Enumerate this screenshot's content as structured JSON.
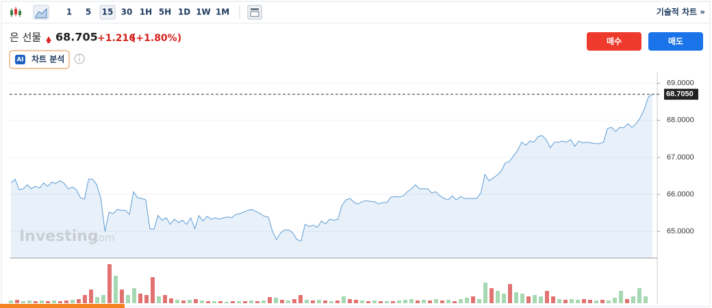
{
  "toolbar": {
    "intervals": [
      "1",
      "5",
      "15",
      "30",
      "1H",
      "5H",
      "1D",
      "1W",
      "1M"
    ],
    "selected": 2,
    "technical_link": "기술적 차트 »"
  },
  "header": {
    "instrument": "은 선물",
    "price": "68.705",
    "change": "+1.216",
    "change_percent": "(+1.80%)",
    "ai_badge": "AI",
    "ai_button": "차트 분석",
    "buy": "매수",
    "sell": "매도"
  },
  "watermark": {
    "brand": "Investing",
    "suffix": ".com"
  },
  "chart_data": {
    "type": "area",
    "ylim": [
      64.28,
      69.31
    ],
    "yticks": [
      {
        "value": 65,
        "label": "65.0000"
      },
      {
        "value": 66,
        "label": "66.0000"
      },
      {
        "value": 67,
        "label": "67.0000"
      },
      {
        "value": 68,
        "label": "68.0000"
      },
      {
        "value": 69,
        "label": "69.0000"
      }
    ],
    "grid": true,
    "last": {
      "value": 68.705,
      "label": "68.7050"
    },
    "series": [
      {
        "color": "#5b9bd5",
        "values": [
          66.31,
          66.41,
          66.13,
          66.15,
          66.26,
          66.15,
          66.22,
          66.17,
          66.31,
          66.22,
          66.33,
          66.3,
          66.37,
          66.3,
          66.15,
          66.2,
          66.13,
          65.91,
          65.87,
          66.41,
          66.41,
          66.26,
          65.89,
          65.0,
          65.52,
          65.48,
          65.59,
          65.57,
          65.57,
          65.46,
          66.07,
          65.91,
          65.89,
          65.85,
          65.07,
          65.06,
          65.43,
          65.3,
          65.37,
          65.19,
          65.33,
          65.24,
          65.3,
          65.19,
          65.37,
          65.07,
          65.43,
          65.28,
          65.41,
          65.33,
          65.37,
          65.33,
          65.37,
          65.39,
          65.37,
          65.46,
          65.48,
          65.52,
          65.57,
          65.59,
          65.54,
          65.48,
          65.41,
          65.39,
          65.0,
          64.78,
          64.96,
          65.04,
          65.04,
          64.96,
          64.78,
          64.74,
          65.19,
          65.13,
          65.17,
          65.11,
          65.28,
          65.2,
          65.33,
          65.3,
          65.33,
          65.7,
          65.85,
          65.89,
          65.78,
          65.74,
          65.81,
          65.83,
          65.81,
          65.8,
          65.74,
          65.78,
          65.78,
          65.93,
          65.94,
          65.93,
          65.96,
          66.07,
          66.15,
          66.26,
          66.15,
          66.15,
          66.15,
          66.04,
          66.07,
          65.96,
          65.89,
          65.85,
          65.96,
          65.85,
          65.94,
          65.89,
          65.89,
          65.89,
          65.89,
          66.04,
          66.54,
          66.37,
          66.44,
          66.52,
          66.63,
          66.85,
          66.89,
          67.04,
          67.19,
          67.41,
          67.33,
          67.44,
          67.41,
          67.56,
          67.59,
          67.48,
          67.26,
          67.41,
          67.41,
          67.44,
          67.41,
          67.48,
          67.3,
          67.44,
          67.39,
          67.41,
          67.39,
          67.37,
          67.37,
          67.41,
          67.78,
          67.81,
          67.7,
          67.81,
          67.8,
          67.91,
          67.81,
          67.91,
          68.07,
          68.3,
          68.63,
          68.705
        ]
      }
    ],
    "volume": {
      "up_color": "#a6d8b2",
      "down_color": "#e27272",
      "values": [
        4,
        5,
        3,
        4,
        3,
        4,
        3,
        4,
        3,
        4,
        5,
        6,
        12,
        20,
        9,
        12,
        57,
        40,
        20,
        12,
        22,
        14,
        12,
        38,
        10,
        12,
        7,
        5,
        4,
        5,
        6,
        4,
        3,
        3,
        3,
        2,
        3,
        3,
        3,
        4,
        3,
        4,
        9,
        8,
        5,
        4,
        6,
        12,
        5,
        4,
        5,
        4,
        3,
        4,
        10,
        6,
        5,
        4,
        3,
        4,
        3,
        3,
        3,
        4,
        5,
        6,
        4,
        5,
        4,
        6,
        4,
        5,
        3,
        6,
        8,
        10,
        6,
        30,
        22,
        18,
        14,
        28,
        16,
        14,
        10,
        12,
        10,
        18,
        10,
        6,
        5,
        6,
        5,
        6,
        5,
        4,
        5,
        4,
        8,
        18,
        6,
        10,
        22,
        10
      ],
      "directions": [
        "up",
        "down",
        "up",
        "up",
        "down",
        "up",
        "down",
        "up",
        "down",
        "down",
        "up",
        "down",
        "down",
        "down",
        "up",
        "up",
        "down",
        "up",
        "down",
        "up",
        "up",
        "down",
        "down",
        "down",
        "up",
        "down",
        "down",
        "up",
        "down",
        "up",
        "down",
        "up",
        "down",
        "up",
        "down",
        "up",
        "down",
        "up",
        "down",
        "up",
        "down",
        "up",
        "down",
        "up",
        "down",
        "up",
        "down",
        "down",
        "up",
        "down",
        "up",
        "down",
        "up",
        "down",
        "up",
        "down",
        "down",
        "up",
        "down",
        "up",
        "down",
        "up",
        "down",
        "up",
        "up",
        "up",
        "down",
        "up",
        "down",
        "up",
        "down",
        "up",
        "down",
        "up",
        "up",
        "down",
        "up",
        "up",
        "down",
        "up",
        "up",
        "down",
        "up",
        "up",
        "down",
        "up",
        "up",
        "down",
        "down",
        "up",
        "down",
        "up",
        "up",
        "down",
        "down",
        "up",
        "down",
        "up",
        "up",
        "up",
        "down",
        "up",
        "up",
        "up"
      ]
    }
  }
}
